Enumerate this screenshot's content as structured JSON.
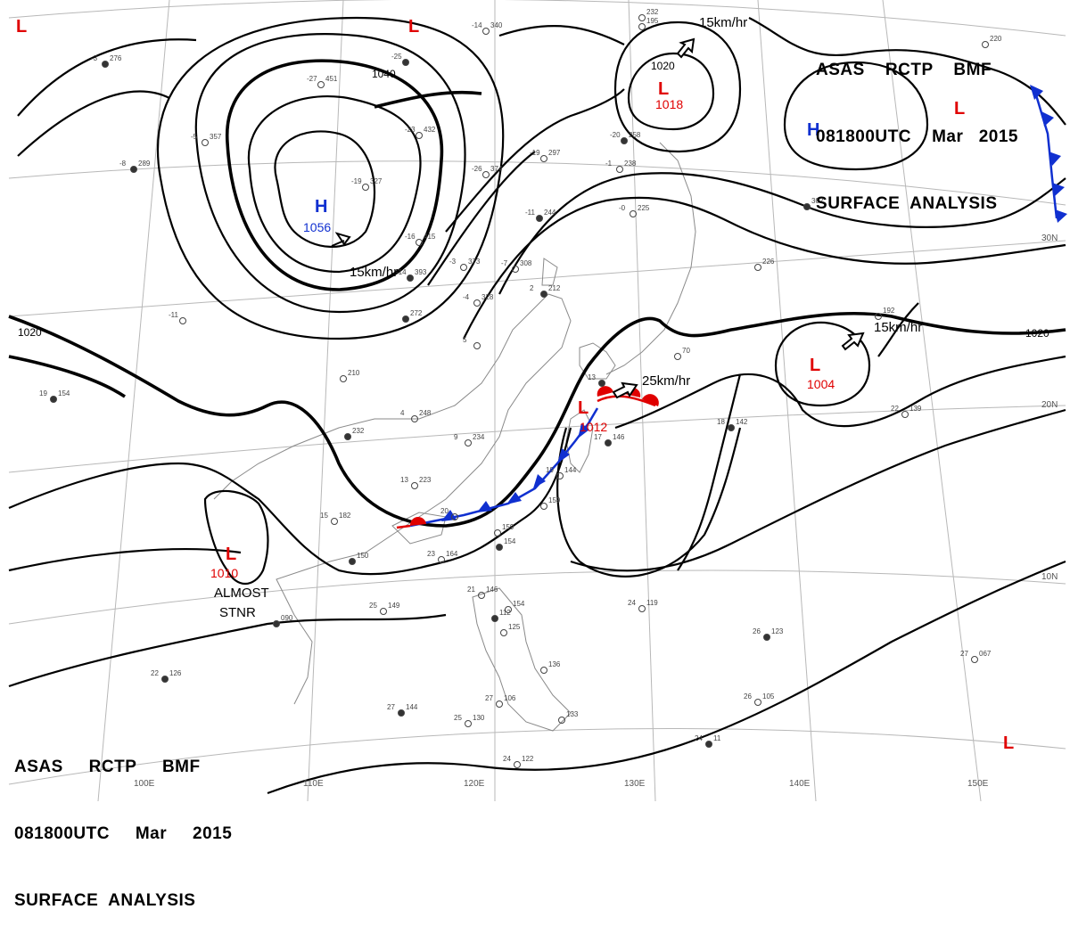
{
  "header_top": {
    "line1": "ASAS    RCTP    BMF",
    "line2": "081800UTC    Mar   2015",
    "line3": "SURFACE  ANALYSIS"
  },
  "header_bottom": {
    "line1": "ASAS     RCTP     BMF",
    "line2": "081800UTC     Mar     2015",
    "line3": "SURFACE  ANALYSIS"
  },
  "colors": {
    "low": "#e00000",
    "high": "#1030d0",
    "cold_front": "#1030d0",
    "warm_front": "#e00000",
    "isobar": "#000000",
    "grid": "#b8b8b8"
  },
  "isobar_labels": [
    "1040",
    "1020",
    "1020",
    "1020",
    "1020"
  ],
  "pressure_centers": [
    {
      "type": "L",
      "value": ""
    },
    {
      "type": "L",
      "value": ""
    },
    {
      "type": "L",
      "value": "1018"
    },
    {
      "type": "H",
      "value": "1056"
    },
    {
      "type": "H",
      "value": ""
    },
    {
      "type": "L",
      "value": ""
    },
    {
      "type": "L",
      "value": "1004"
    },
    {
      "type": "L",
      "value": "1012"
    },
    {
      "type": "L",
      "value": "1010"
    },
    {
      "type": "L",
      "value": ""
    }
  ],
  "movement_labels": [
    "15km/hr",
    "15km/hr",
    "15km/hr",
    "25km/hr"
  ],
  "stationary_note": [
    "ALMOST",
    "STNR"
  ],
  "longitude_labels": [
    "100E",
    "110E",
    "120E",
    "130E",
    "140E",
    "150E"
  ],
  "latitude_labels": [
    "30N",
    "20N",
    "10N"
  ],
  "stations": [
    {
      "a": "-3",
      "b": "276"
    },
    {
      "a": "-27",
      "b": "451"
    },
    {
      "a": "-14",
      "b": "340"
    },
    {
      "a": "-25",
      "b": ""
    },
    {
      "a": "-5",
      "b": "357"
    },
    {
      "a": "-19",
      "b": "327"
    },
    {
      "a": "-8",
      "b": "289"
    },
    {
      "a": "-23",
      "b": "432"
    },
    {
      "a": "-19",
      "b": "297"
    },
    {
      "a": "-20",
      "b": "258"
    },
    {
      "a": "-1",
      "b": "238"
    },
    {
      "a": "-26",
      "b": "374"
    },
    {
      "a": "-11",
      "b": "244"
    },
    {
      "a": "-0",
      "b": "225"
    },
    {
      "a": "-16",
      "b": "415"
    },
    {
      "a": "-14",
      "b": "393"
    },
    {
      "a": "-3",
      "b": "373"
    },
    {
      "a": "-7",
      "b": "308"
    },
    {
      "a": "",
      "b": "302"
    },
    {
      "a": "",
      "b": "226"
    },
    {
      "a": "-4",
      "b": "328"
    },
    {
      "a": "2",
      "b": "212"
    },
    {
      "a": "5",
      "b": ""
    },
    {
      "a": "-11",
      "b": ""
    },
    {
      "a": "",
      "b": "272"
    },
    {
      "a": "",
      "b": "210"
    },
    {
      "a": "4",
      "b": "248"
    },
    {
      "a": "",
      "b": "232"
    },
    {
      "a": "9",
      "b": "234"
    },
    {
      "a": "13",
      "b": "223"
    },
    {
      "a": "17",
      "b": "146"
    },
    {
      "a": "19",
      "b": "144"
    },
    {
      "a": "",
      "b": "159"
    },
    {
      "a": "18",
      "b": "142"
    },
    {
      "a": "22",
      "b": "139"
    },
    {
      "a": "15",
      "b": "182"
    },
    {
      "a": "",
      "b": "150"
    },
    {
      "a": "20",
      "b": ""
    },
    {
      "a": "",
      "b": "159"
    },
    {
      "a": "",
      "b": "154"
    },
    {
      "a": "23",
      "b": "164"
    },
    {
      "a": "25",
      "b": "149"
    },
    {
      "a": "",
      "b": "090"
    },
    {
      "a": "21",
      "b": "146"
    },
    {
      "a": "",
      "b": "154"
    },
    {
      "a": "",
      "b": "112"
    },
    {
      "a": "",
      "b": "125"
    },
    {
      "a": "24",
      "b": "119"
    },
    {
      "a": "26",
      "b": "123"
    },
    {
      "a": "",
      "b": "136"
    },
    {
      "a": "27",
      "b": "106"
    },
    {
      "a": "27",
      "b": "144"
    },
    {
      "a": "25",
      "b": "130"
    },
    {
      "a": "",
      "b": "133"
    },
    {
      "a": "22",
      "b": "126"
    },
    {
      "a": "24",
      "b": "122"
    },
    {
      "a": "26",
      "b": "105"
    },
    {
      "a": "24",
      "b": "11"
    },
    {
      "a": "27",
      "b": "067"
    },
    {
      "a": "",
      "b": "220"
    },
    {
      "a": "19",
      "b": "154"
    },
    {
      "a": "",
      "b": "195"
    },
    {
      "a": "",
      "b": "70"
    },
    {
      "a": "13",
      "b": ""
    },
    {
      "a": "",
      "b": "232"
    },
    {
      "a": "",
      "b": "192"
    }
  ]
}
